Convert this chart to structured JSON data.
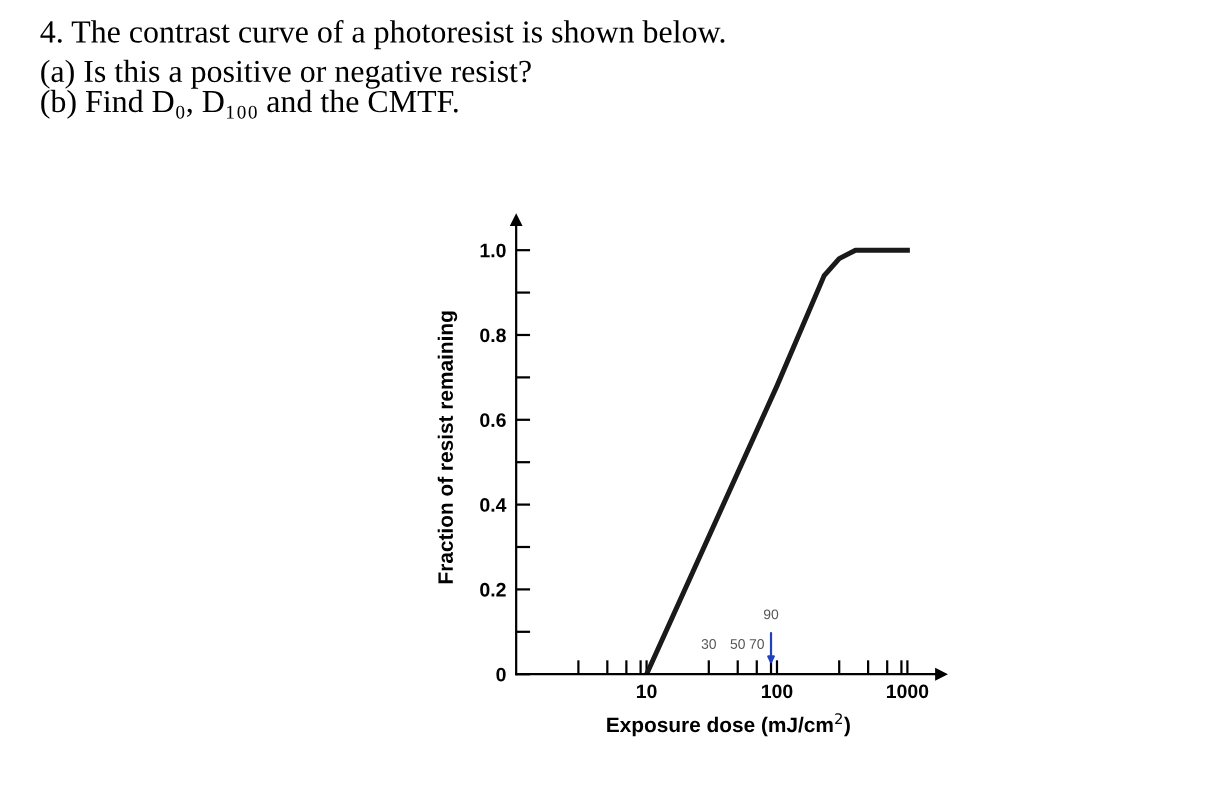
{
  "chart_data": {
    "type": "line",
    "title": "4. The contrast curve of a photoresist is shown below.",
    "subtitle": "(a) Is this a positive or negative resist?\n(b) Find D₀, D₁₀₀ and the CMTF.",
    "xlabel": "Exposure dose (mJ/cm$^{2}$)",
    "ylabel": "Fraction of resist remaining",
    "x": [
      10,
      100,
      230,
      300,
      400,
      1000
    ],
    "series": [
      {
        "color": "#1a1a1a",
        "values": [
          0,
          0.68,
          0.94,
          0.98,
          1.0,
          1.0
        ]
      }
    ],
    "log": "x",
    "xlim": [
      1,
      1800
    ],
    "ylim": [
      0,
      1.07
    ],
    "xticks": [
      {
        "value": 3,
        "label": null
      },
      {
        "value": 5,
        "label": null
      },
      {
        "value": 7,
        "label": null
      },
      {
        "value": 9,
        "label": null
      },
      10,
      {
        "value": 30,
        "label": null
      },
      {
        "value": 50,
        "label": null
      },
      {
        "value": 70,
        "label": null
      },
      {
        "value": 90,
        "label": null
      },
      100,
      {
        "value": 300,
        "label": null
      },
      {
        "value": 500,
        "label": null
      },
      {
        "value": 700,
        "label": null
      },
      {
        "value": 900,
        "label": null
      },
      1000
    ],
    "yticks": [
      0,
      {
        "value": 0.1,
        "label": null
      },
      0.2,
      {
        "value": 0.3,
        "label": null
      },
      0.4,
      {
        "value": 0.5,
        "label": null
      },
      0.6,
      {
        "value": 0.7,
        "label": null
      },
      0.8,
      {
        "value": 0.9,
        "label": null
      },
      {
        "value": 1.0,
        "label": "1.0"
      }
    ],
    "annotations": [
      "30",
      "50",
      "70",
      "90"
    ],
    "grid": false,
    "legend": false,
    "marker": "none",
    "line_style": "solid"
  }
}
